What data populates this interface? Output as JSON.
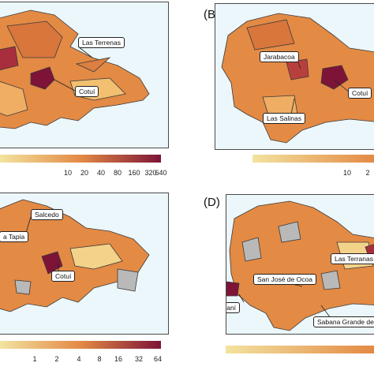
{
  "panels": [
    {
      "id": "A",
      "label": "",
      "callouts": [
        "Las Terrenas",
        "Cotuí"
      ],
      "legend_ticks": [
        "10",
        "20",
        "40",
        "80",
        "160",
        "320",
        "640"
      ]
    },
    {
      "id": "B",
      "label": "(B)",
      "callouts": [
        "Jarabacoa",
        "Cotuí",
        "Las Salinas"
      ],
      "legend_ticks": [
        "10",
        "2"
      ]
    },
    {
      "id": "C",
      "label": "",
      "callouts": [
        "Salcedo",
        "a Tapia",
        "Cotuí"
      ],
      "legend_ticks": [
        "1",
        "2",
        "4",
        "8",
        "16",
        "32",
        "64"
      ]
    },
    {
      "id": "D",
      "label": "(D)",
      "callouts": [
        "Las Terranas",
        "San José de Ocoa",
        "Jimaní",
        "Sabana Grande de P"
      ],
      "legend_ticks": []
    }
  ],
  "colors": {
    "ocean": "#ecf7fb",
    "low": "#f3e3a0",
    "mid": "#e38a45",
    "high": "#7d1437",
    "missing": "#b9b9b9",
    "border": "#3a3a3a"
  }
}
